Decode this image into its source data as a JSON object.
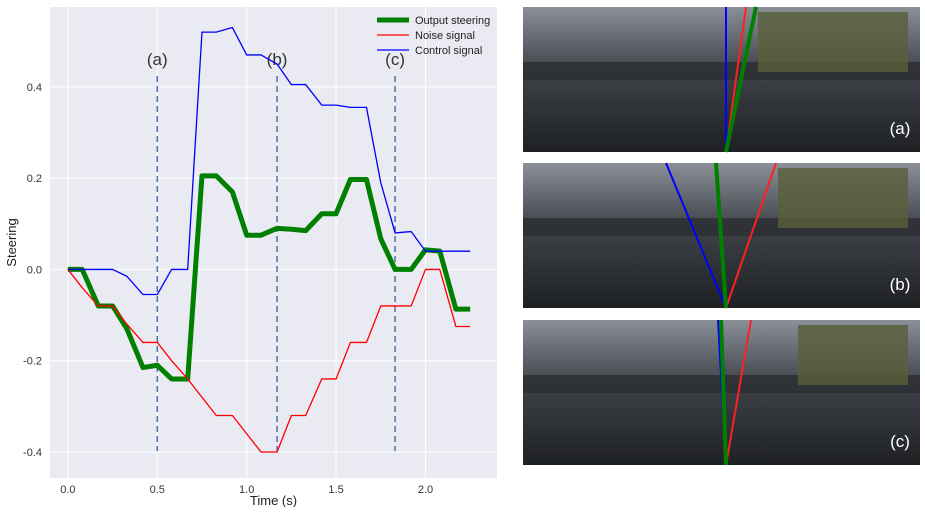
{
  "chart_data": {
    "type": "line",
    "xlabel": "Time (s)",
    "ylabel": "Steering",
    "x": [
      0,
      0.08,
      0.17,
      0.25,
      0.33,
      0.42,
      0.5,
      0.58,
      0.67,
      0.75,
      0.83,
      0.92,
      1.0,
      1.08,
      1.17,
      1.25,
      1.33,
      1.42,
      1.5,
      1.58,
      1.67,
      1.75,
      1.83,
      1.92,
      2.0,
      2.08,
      2.17,
      2.25
    ],
    "series": [
      {
        "name": "Output steering",
        "color": "#008000",
        "width": 5,
        "values": [
          0,
          0,
          -0.08,
          -0.08,
          -0.13,
          -0.215,
          -0.21,
          -0.24,
          -0.24,
          0.205,
          0.205,
          0.17,
          0.075,
          0.075,
          0.09,
          0.088,
          0.085,
          0.122,
          0.122,
          0.197,
          0.197,
          0.067,
          0,
          0,
          0.043,
          0.04,
          -0.087,
          -0.087
        ]
      },
      {
        "name": "Noise signal",
        "color": "#ff0000",
        "width": 1.3,
        "values": [
          0,
          -0.04,
          -0.08,
          -0.08,
          -0.12,
          -0.16,
          -0.16,
          -0.2,
          -0.24,
          -0.28,
          -0.32,
          -0.32,
          -0.36,
          -0.4,
          -0.4,
          -0.32,
          -0.32,
          -0.24,
          -0.24,
          -0.16,
          -0.16,
          -0.08,
          -0.08,
          -0.08,
          0,
          0,
          -0.125,
          -0.125
        ]
      },
      {
        "name": "Control signal",
        "color": "#0000ff",
        "width": 1.3,
        "values": [
          0,
          0,
          0,
          0,
          -0.015,
          -0.055,
          -0.055,
          0,
          0,
          0.52,
          0.52,
          0.53,
          0.47,
          0.47,
          0.45,
          0.405,
          0.405,
          0.36,
          0.36,
          0.355,
          0.355,
          0.19,
          0.08,
          0.083,
          0.04,
          0.04,
          0.04,
          0.04
        ]
      }
    ],
    "xlim": [
      -0.1,
      2.4
    ],
    "ylim": [
      -0.457,
      0.575
    ],
    "xticks": [
      {
        "value": 0,
        "label": "0.0"
      },
      0.5,
      {
        "value": 1,
        "label": "1.0"
      },
      1.5,
      {
        "value": 2,
        "label": "2.0"
      }
    ],
    "yticks": [
      -0.4,
      -0.2,
      {
        "value": 0,
        "label": "0.0"
      },
      0.2,
      0.4
    ],
    "grid": true,
    "legend": "upper right",
    "annotations": [
      {
        "x": 0.5,
        "label": "(a)"
      },
      {
        "x": 1.17,
        "label": "(b)"
      },
      {
        "x": 1.83,
        "label": "(c)"
      }
    ]
  },
  "panels": [
    {
      "label": "(a)"
    },
    {
      "label": "(b)"
    },
    {
      "label": "(c)"
    }
  ]
}
